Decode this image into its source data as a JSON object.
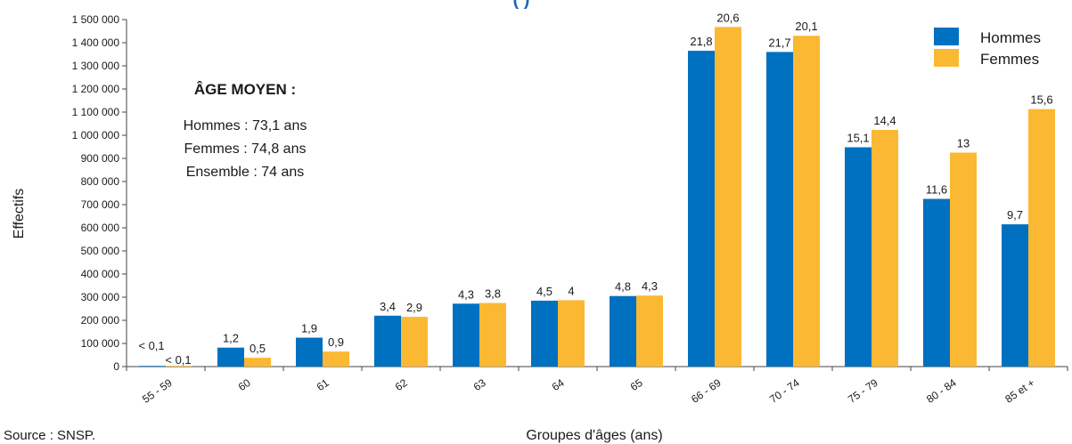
{
  "title_fragment": "(                      )",
  "source": "Source : SNSP.",
  "average_age": {
    "title": "ÂGE MOYEN :",
    "lines": [
      "Hommes : 73,1 ans",
      "Femmes : 74,8 ans",
      "Ensemble : 74 ans"
    ]
  },
  "colors": {
    "hommes": "#0070c0",
    "femmes": "#fbb832"
  },
  "chart_data": {
    "type": "bar",
    "xlabel": "Groupes d'âges (ans)",
    "ylabel": "Effectifs",
    "ylim": [
      0,
      1500000
    ],
    "yticks": [
      0,
      100000,
      200000,
      300000,
      400000,
      500000,
      600000,
      700000,
      800000,
      900000,
      1000000,
      1100000,
      1200000,
      1300000,
      1400000,
      1500000
    ],
    "ytick_labels": [
      "0",
      "100 000",
      "200 000",
      "300 000",
      "400 000",
      "500 000",
      "600 000",
      "700 000",
      "800 000",
      "900 000",
      "1 000 000",
      "1 100 000",
      "1 200 000",
      "1 300 000",
      "1 400 000",
      "1 500 000"
    ],
    "categories": [
      "55 - 59",
      "60",
      "61",
      "62",
      "63",
      "64",
      "65",
      "66 - 69",
      "70 - 74",
      "75 - 79",
      "80 - 84",
      "85 et +"
    ],
    "legend_position": "top-right",
    "grid": false,
    "series": [
      {
        "name": "Hommes",
        "values": [
          3000,
          82000,
          125000,
          220000,
          272000,
          285000,
          305000,
          1365000,
          1360000,
          948000,
          725000,
          615000
        ],
        "labels": [
          "< 0,1",
          "1,2",
          "1,9",
          "3,4",
          "4,3",
          "4,5",
          "4,8",
          "21,8",
          "21,7",
          "15,1",
          "11,6",
          "9,7"
        ]
      },
      {
        "name": "Femmes",
        "values": [
          3000,
          38000,
          65000,
          215000,
          275000,
          287000,
          307000,
          1468000,
          1430000,
          1023000,
          925000,
          1113000
        ],
        "labels": [
          "< 0,1",
          "0,5",
          "0,9",
          "2,9",
          "3,8",
          "4",
          "4,3",
          "20,6",
          "20,1",
          "14,4",
          "13",
          "15,6"
        ]
      }
    ]
  }
}
